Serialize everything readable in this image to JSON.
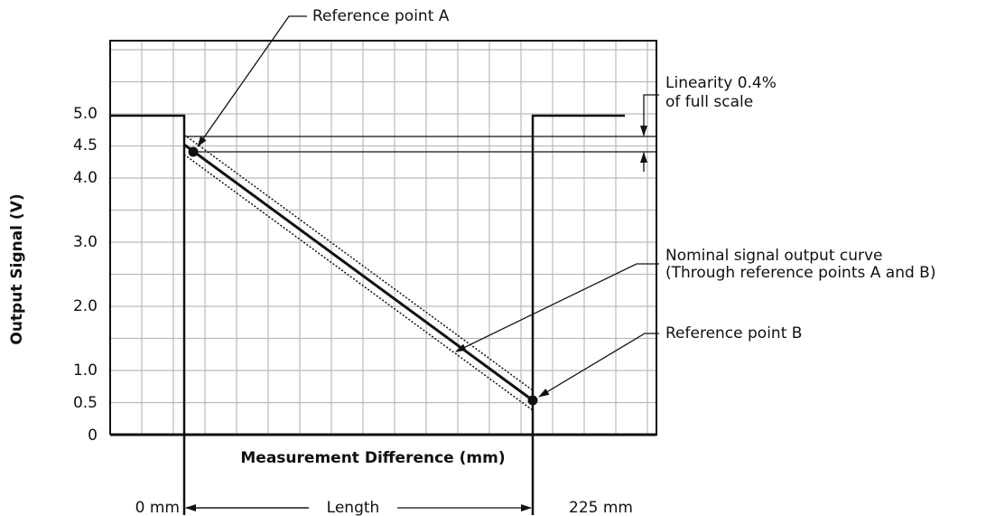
{
  "y_axis_title": "Output Signal (V)",
  "y_tick_labels": [
    "5.0",
    "4.5",
    "4.0",
    "3.0",
    "2.0",
    "1.0",
    "0.5",
    "0"
  ],
  "x_axis_title": "Measurement Difference (mm)",
  "annotations": {
    "reference_a": "Reference point A",
    "linearity": [
      "Linearity 0.4%",
      "of full scale"
    ],
    "nominal": [
      "Nominal signal output curve",
      "(Through reference points A and B)"
    ],
    "reference_b": "Reference point B"
  },
  "dimension": {
    "start": "0 mm",
    "span": "Length",
    "end": "225 mm"
  }
}
